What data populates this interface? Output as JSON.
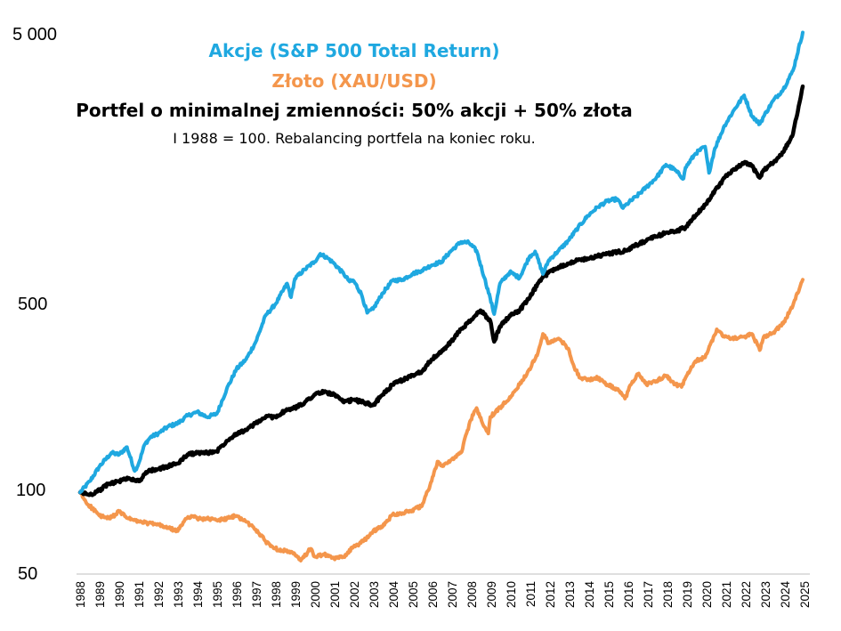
{
  "chart_data": {
    "type": "line",
    "title_lines": [
      "Akcje (S&P 500 Total Return)",
      "Złoto (XAU/USD)",
      "Portfel o minimalnej zmienności: 50% akcji + 50% złota"
    ],
    "subtitle": "I 1988 = 100. Rebalancing portfela na koniec roku.",
    "y_scale": "log",
    "ylim": [
      50,
      5000
    ],
    "y_ticks": [
      {
        "value": 50,
        "label": "50"
      },
      {
        "value": 100,
        "label": "100"
      },
      {
        "value": 500,
        "label": "500"
      },
      {
        "value": 5000,
        "label": "5 000"
      }
    ],
    "x_ticks": [
      "1988",
      "1989",
      "1990",
      "1991",
      "1992",
      "1993",
      "1994",
      "1995",
      "1996",
      "1997",
      "1998",
      "1999",
      "2000",
      "2001",
      "2002",
      "2003",
      "2004",
      "2005",
      "2006",
      "2007",
      "2008",
      "2009",
      "2010",
      "2011",
      "2012",
      "2013",
      "2014",
      "2015",
      "2016",
      "2017",
      "2018",
      "2019",
      "2020",
      "2021",
      "2022",
      "2023",
      "2024",
      "2025"
    ],
    "xlim": [
      1988.0,
      2025.0
    ],
    "series": [
      {
        "name": "Akcje (S&P 500 Total Return)",
        "color": "#1FA8E0",
        "points": [
          [
            1988.0,
            100
          ],
          [
            1988.5,
            110
          ],
          [
            1989.0,
            125
          ],
          [
            1989.6,
            140
          ],
          [
            1990.0,
            138
          ],
          [
            1990.4,
            147
          ],
          [
            1990.8,
            120
          ],
          [
            1991.0,
            128
          ],
          [
            1991.3,
            150
          ],
          [
            1991.6,
            160
          ],
          [
            1992.0,
            165
          ],
          [
            1992.5,
            175
          ],
          [
            1993.0,
            180
          ],
          [
            1993.5,
            192
          ],
          [
            1994.0,
            198
          ],
          [
            1994.5,
            190
          ],
          [
            1995.0,
            195
          ],
          [
            1995.5,
            240
          ],
          [
            1996.0,
            285
          ],
          [
            1996.5,
            310
          ],
          [
            1997.0,
            360
          ],
          [
            1997.5,
            450
          ],
          [
            1998.0,
            495
          ],
          [
            1998.6,
            590
          ],
          [
            1998.8,
            525
          ],
          [
            1999.0,
            615
          ],
          [
            1999.5,
            665
          ],
          [
            2000.0,
            710
          ],
          [
            2000.3,
            760
          ],
          [
            2000.7,
            730
          ],
          [
            2001.0,
            700
          ],
          [
            2001.5,
            640
          ],
          [
            2001.8,
            600
          ],
          [
            2002.0,
            605
          ],
          [
            2002.4,
            540
          ],
          [
            2002.7,
            460
          ],
          [
            2003.0,
            475
          ],
          [
            2003.5,
            545
          ],
          [
            2004.0,
            605
          ],
          [
            2004.5,
            610
          ],
          [
            2005.0,
            640
          ],
          [
            2005.5,
            660
          ],
          [
            2006.0,
            690
          ],
          [
            2006.5,
            710
          ],
          [
            2007.0,
            780
          ],
          [
            2007.5,
            840
          ],
          [
            2007.9,
            835
          ],
          [
            2008.3,
            780
          ],
          [
            2008.7,
            620
          ],
          [
            2009.0,
            520
          ],
          [
            2009.2,
            455
          ],
          [
            2009.5,
            590
          ],
          [
            2010.0,
            650
          ],
          [
            2010.5,
            620
          ],
          [
            2011.0,
            740
          ],
          [
            2011.3,
            775
          ],
          [
            2011.7,
            640
          ],
          [
            2012.0,
            720
          ],
          [
            2012.5,
            780
          ],
          [
            2013.0,
            850
          ],
          [
            2013.5,
            950
          ],
          [
            2014.0,
            1050
          ],
          [
            2014.5,
            1130
          ],
          [
            2015.0,
            1190
          ],
          [
            2015.5,
            1210
          ],
          [
            2015.8,
            1120
          ],
          [
            2016.0,
            1160
          ],
          [
            2016.5,
            1240
          ],
          [
            2017.0,
            1340
          ],
          [
            2017.5,
            1450
          ],
          [
            2018.0,
            1620
          ],
          [
            2018.4,
            1560
          ],
          [
            2018.9,
            1440
          ],
          [
            2019.0,
            1580
          ],
          [
            2019.5,
            1780
          ],
          [
            2020.0,
            1890
          ],
          [
            2020.2,
            1510
          ],
          [
            2020.5,
            1860
          ],
          [
            2021.0,
            2260
          ],
          [
            2021.5,
            2590
          ],
          [
            2022.0,
            2920
          ],
          [
            2022.4,
            2450
          ],
          [
            2022.8,
            2290
          ],
          [
            2023.0,
            2440
          ],
          [
            2023.5,
            2800
          ],
          [
            2024.0,
            3070
          ],
          [
            2024.5,
            3600
          ],
          [
            2025.0,
            4980
          ]
        ]
      },
      {
        "name": "Złoto (XAU/USD)",
        "color": "#F4964C",
        "points": [
          [
            1988.0,
            100
          ],
          [
            1988.3,
            92
          ],
          [
            1988.8,
            85
          ],
          [
            1989.0,
            82
          ],
          [
            1989.5,
            80
          ],
          [
            1990.0,
            85
          ],
          [
            1990.5,
            80
          ],
          [
            1991.0,
            78
          ],
          [
            1991.5,
            77
          ],
          [
            1992.0,
            76
          ],
          [
            1992.5,
            74
          ],
          [
            1993.0,
            72
          ],
          [
            1993.4,
            80
          ],
          [
            1993.7,
            82
          ],
          [
            1994.0,
            80
          ],
          [
            1994.5,
            80
          ],
          [
            1995.0,
            79
          ],
          [
            1995.5,
            80
          ],
          [
            1996.0,
            82
          ],
          [
            1996.5,
            78
          ],
          [
            1997.0,
            73
          ],
          [
            1997.5,
            66
          ],
          [
            1998.0,
            62
          ],
          [
            1998.5,
            61
          ],
          [
            1999.0,
            59
          ],
          [
            1999.3,
            56
          ],
          [
            1999.8,
            62
          ],
          [
            2000.0,
            58
          ],
          [
            2000.5,
            59
          ],
          [
            2001.0,
            57
          ],
          [
            2001.5,
            58
          ],
          [
            2002.0,
            63
          ],
          [
            2002.5,
            66
          ],
          [
            2003.0,
            72
          ],
          [
            2003.5,
            75
          ],
          [
            2004.0,
            83
          ],
          [
            2004.5,
            84
          ],
          [
            2005.0,
            86
          ],
          [
            2005.5,
            89
          ],
          [
            2006.0,
            110
          ],
          [
            2006.3,
            130
          ],
          [
            2006.6,
            125
          ],
          [
            2007.0,
            132
          ],
          [
            2007.5,
            140
          ],
          [
            2008.0,
            185
          ],
          [
            2008.3,
            205
          ],
          [
            2008.6,
            180
          ],
          [
            2008.9,
            165
          ],
          [
            2009.0,
            190
          ],
          [
            2009.5,
            205
          ],
          [
            2010.0,
            225
          ],
          [
            2010.5,
            250
          ],
          [
            2011.0,
            285
          ],
          [
            2011.4,
            320
          ],
          [
            2011.7,
            385
          ],
          [
            2012.0,
            355
          ],
          [
            2012.5,
            370
          ],
          [
            2013.0,
            340
          ],
          [
            2013.3,
            290
          ],
          [
            2013.6,
            265
          ],
          [
            2014.0,
            260
          ],
          [
            2014.5,
            265
          ],
          [
            2015.0,
            250
          ],
          [
            2015.5,
            240
          ],
          [
            2015.9,
            222
          ],
          [
            2016.2,
            250
          ],
          [
            2016.6,
            275
          ],
          [
            2017.0,
            250
          ],
          [
            2017.5,
            258
          ],
          [
            2018.0,
            270
          ],
          [
            2018.5,
            250
          ],
          [
            2018.8,
            245
          ],
          [
            2019.0,
            265
          ],
          [
            2019.5,
            305
          ],
          [
            2020.0,
            315
          ],
          [
            2020.6,
            400
          ],
          [
            2021.0,
            375
          ],
          [
            2021.5,
            370
          ],
          [
            2022.0,
            375
          ],
          [
            2022.4,
            385
          ],
          [
            2022.8,
            335
          ],
          [
            2023.0,
            375
          ],
          [
            2023.5,
            390
          ],
          [
            2024.0,
            420
          ],
          [
            2024.5,
            490
          ],
          [
            2025.0,
            610
          ]
        ]
      },
      {
        "name": "Portfel o minimalnej zmienności: 50% akcji + 50% złota",
        "color": "#000000",
        "points": [
          [
            1988.0,
            100
          ],
          [
            1988.5,
            98
          ],
          [
            1989.0,
            102
          ],
          [
            1989.5,
            108
          ],
          [
            1990.0,
            110
          ],
          [
            1990.5,
            113
          ],
          [
            1991.0,
            110
          ],
          [
            1991.5,
            120
          ],
          [
            1992.0,
            122
          ],
          [
            1992.5,
            125
          ],
          [
            1993.0,
            128
          ],
          [
            1993.5,
            138
          ],
          [
            1994.0,
            140
          ],
          [
            1994.5,
            140
          ],
          [
            1995.0,
            142
          ],
          [
            1995.5,
            155
          ],
          [
            1996.0,
            165
          ],
          [
            1996.5,
            170
          ],
          [
            1997.0,
            180
          ],
          [
            1997.5,
            190
          ],
          [
            1998.0,
            190
          ],
          [
            1998.5,
            200
          ],
          [
            1999.0,
            205
          ],
          [
            1999.5,
            215
          ],
          [
            2000.0,
            230
          ],
          [
            2000.5,
            235
          ],
          [
            2001.0,
            230
          ],
          [
            2001.5,
            215
          ],
          [
            2002.0,
            220
          ],
          [
            2002.5,
            215
          ],
          [
            2003.0,
            210
          ],
          [
            2003.5,
            230
          ],
          [
            2004.0,
            250
          ],
          [
            2004.5,
            260
          ],
          [
            2005.0,
            270
          ],
          [
            2005.5,
            280
          ],
          [
            2006.0,
            310
          ],
          [
            2006.5,
            330
          ],
          [
            2007.0,
            360
          ],
          [
            2007.5,
            400
          ],
          [
            2008.0,
            430
          ],
          [
            2008.5,
            470
          ],
          [
            2009.0,
            430
          ],
          [
            2009.2,
            360
          ],
          [
            2009.5,
            410
          ],
          [
            2010.0,
            450
          ],
          [
            2010.5,
            470
          ],
          [
            2011.0,
            520
          ],
          [
            2011.5,
            600
          ],
          [
            2012.0,
            650
          ],
          [
            2012.5,
            680
          ],
          [
            2013.0,
            700
          ],
          [
            2013.5,
            720
          ],
          [
            2014.0,
            730
          ],
          [
            2014.5,
            745
          ],
          [
            2015.0,
            760
          ],
          [
            2015.5,
            770
          ],
          [
            2016.0,
            780
          ],
          [
            2016.5,
            820
          ],
          [
            2017.0,
            850
          ],
          [
            2017.5,
            880
          ],
          [
            2018.0,
            910
          ],
          [
            2018.5,
            920
          ],
          [
            2019.0,
            950
          ],
          [
            2019.5,
            1050
          ],
          [
            2020.0,
            1150
          ],
          [
            2020.5,
            1300
          ],
          [
            2021.0,
            1450
          ],
          [
            2021.5,
            1550
          ],
          [
            2022.0,
            1650
          ],
          [
            2022.4,
            1600
          ],
          [
            2022.8,
            1450
          ],
          [
            2023.0,
            1550
          ],
          [
            2023.5,
            1650
          ],
          [
            2024.0,
            1800
          ],
          [
            2024.5,
            2100
          ],
          [
            2025.0,
            3150
          ]
        ]
      }
    ]
  }
}
